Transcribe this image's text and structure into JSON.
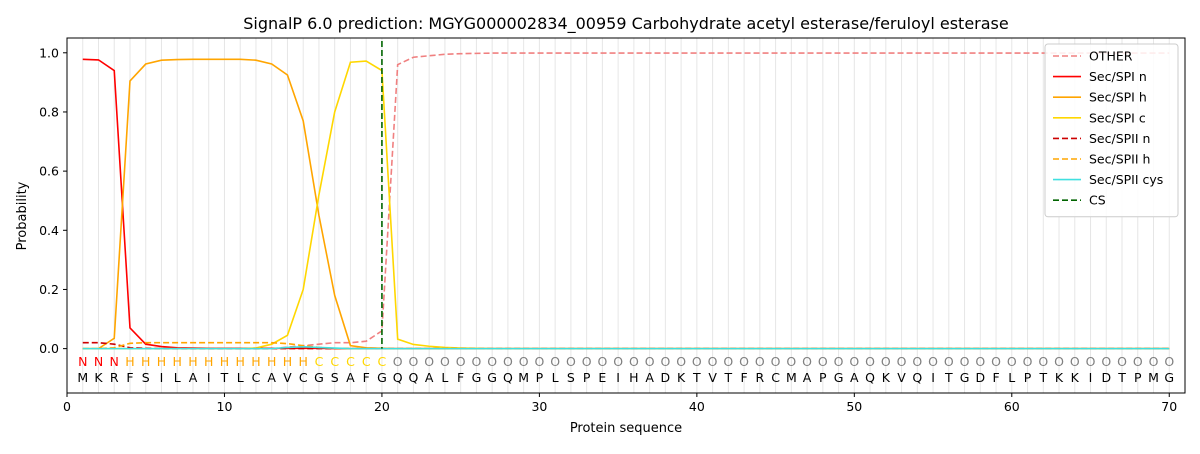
{
  "chart_data": {
    "type": "line",
    "title": "SignalP 6.0 prediction: MGYG000002834_00959 Carbohydrate acetyl esterase/feruloyl esterase",
    "xlabel": "Protein sequence",
    "ylabel": "Probability",
    "xlim": [
      0,
      71
    ],
    "ylim": [
      -0.15,
      1.05
    ],
    "x_ticks": [
      0,
      10,
      20,
      30,
      40,
      50,
      60,
      70
    ],
    "y_ticks": [
      0.0,
      0.2,
      0.4,
      0.6,
      0.8,
      1.0
    ],
    "x_tick_labels": [
      "0",
      "10",
      "20",
      "30",
      "40",
      "50",
      "60",
      "70"
    ],
    "y_tick_labels": [
      "0.0",
      "0.2",
      "0.4",
      "0.6",
      "0.8",
      "1.0"
    ],
    "grid": "vertical lines at each residue",
    "legend_position": "top-right",
    "sequence": [
      "M",
      "K",
      "R",
      "F",
      "S",
      "I",
      "L",
      "A",
      "I",
      "T",
      "L",
      "C",
      "A",
      "V",
      "C",
      "G",
      "S",
      "A",
      "F",
      "G",
      "Q",
      "Q",
      "A",
      "L",
      "F",
      "G",
      "G",
      "Q",
      "M",
      "P",
      "L",
      "S",
      "P",
      "E",
      "I",
      "H",
      "A",
      "D",
      "K",
      "T",
      "V",
      "T",
      "F",
      "R",
      "C",
      "M",
      "A",
      "P",
      "G",
      "A",
      "Q",
      "K",
      "V",
      "Q",
      "I",
      "T",
      "G",
      "D",
      "F",
      "L",
      "P",
      "T",
      "K",
      "K",
      "I",
      "D",
      "T",
      "P",
      "M",
      "G"
    ],
    "labels": [
      "N",
      "N",
      "N",
      "H",
      "H",
      "H",
      "H",
      "H",
      "H",
      "H",
      "H",
      "H",
      "H",
      "H",
      "H",
      "C",
      "C",
      "C",
      "C",
      "C",
      "O",
      "O",
      "O",
      "O",
      "O",
      "O",
      "O",
      "O",
      "O",
      "O",
      "O",
      "O",
      "O",
      "O",
      "O",
      "O",
      "O",
      "O",
      "O",
      "O",
      "O",
      "O",
      "O",
      "O",
      "O",
      "O",
      "O",
      "O",
      "O",
      "O",
      "O",
      "O",
      "O",
      "O",
      "O",
      "O",
      "O",
      "O",
      "O",
      "O",
      "O",
      "O",
      "O",
      "O",
      "O",
      "O",
      "O",
      "O",
      "O",
      "O"
    ],
    "label_colors": {
      "N": "#ff0000",
      "H": "#ffa500",
      "C": "#ffd700",
      "O": "#808080"
    },
    "series": [
      {
        "name": "OTHER",
        "color": "#f08080",
        "dash": "dashed",
        "values": [
          0.0,
          0.0,
          0.0,
          0.0,
          0.0,
          0.0,
          0.0,
          0.0,
          0.0,
          0.0,
          0.0,
          0.0,
          0.0,
          0.005,
          0.01,
          0.015,
          0.02,
          0.02,
          0.025,
          0.06,
          0.96,
          0.985,
          0.99,
          0.995,
          0.997,
          0.998,
          0.999,
          0.999,
          0.999,
          0.999,
          0.999,
          0.999,
          0.999,
          0.999,
          0.999,
          0.999,
          0.999,
          0.999,
          0.999,
          0.999,
          0.999,
          0.999,
          0.999,
          0.999,
          0.999,
          0.999,
          0.999,
          0.999,
          0.999,
          0.999,
          0.999,
          0.999,
          0.999,
          0.999,
          0.999,
          0.999,
          0.999,
          0.999,
          0.999,
          0.999,
          0.999,
          0.999,
          0.999,
          0.999,
          0.999,
          0.999,
          0.999,
          0.999,
          0.999,
          0.999
        ]
      },
      {
        "name": "Sec/SPI n",
        "color": "#ff0000",
        "dash": "solid",
        "values": [
          0.978,
          0.976,
          0.94,
          0.07,
          0.015,
          0.007,
          0.003,
          0.002,
          0.001,
          0.001,
          0.001,
          0.001,
          0.001,
          0.001,
          0.001,
          0.001,
          0.0,
          0.0,
          0.0,
          0.0,
          0.0,
          0.0,
          0.0,
          0.0,
          0.0,
          0.0,
          0.0,
          0.0,
          0.0,
          0.0,
          0.0,
          0.0,
          0.0,
          0.0,
          0.0,
          0.0,
          0.0,
          0.0,
          0.0,
          0.0,
          0.0,
          0.0,
          0.0,
          0.0,
          0.0,
          0.0,
          0.0,
          0.0,
          0.0,
          0.0,
          0.0,
          0.0,
          0.0,
          0.0,
          0.0,
          0.0,
          0.0,
          0.0,
          0.0,
          0.0,
          0.0,
          0.0,
          0.0,
          0.0,
          0.0,
          0.0,
          0.0,
          0.0,
          0.0,
          0.0
        ]
      },
      {
        "name": "Sec/SPI h",
        "color": "#ffa500",
        "dash": "solid",
        "values": [
          0.0,
          0.0,
          0.035,
          0.905,
          0.962,
          0.975,
          0.977,
          0.978,
          0.978,
          0.978,
          0.978,
          0.975,
          0.962,
          0.925,
          0.77,
          0.45,
          0.18,
          0.01,
          0.003,
          0.001,
          0.0,
          0.0,
          0.0,
          0.0,
          0.0,
          0.0,
          0.0,
          0.0,
          0.0,
          0.0,
          0.0,
          0.0,
          0.0,
          0.0,
          0.0,
          0.0,
          0.0,
          0.0,
          0.0,
          0.0,
          0.0,
          0.0,
          0.0,
          0.0,
          0.0,
          0.0,
          0.0,
          0.0,
          0.0,
          0.0,
          0.0,
          0.0,
          0.0,
          0.0,
          0.0,
          0.0,
          0.0,
          0.0,
          0.0,
          0.0,
          0.0,
          0.0,
          0.0,
          0.0,
          0.0,
          0.0,
          0.0,
          0.0,
          0.0,
          0.0
        ]
      },
      {
        "name": "Sec/SPI c",
        "color": "#ffd700",
        "dash": "solid",
        "values": [
          0.0,
          0.0,
          0.0,
          0.0,
          0.0,
          0.0,
          0.0,
          0.0,
          0.0,
          0.0,
          0.0,
          0.002,
          0.015,
          0.045,
          0.2,
          0.52,
          0.8,
          0.968,
          0.972,
          0.94,
          0.032,
          0.014,
          0.008,
          0.004,
          0.002,
          0.001,
          0.0,
          0.0,
          0.0,
          0.0,
          0.0,
          0.0,
          0.0,
          0.0,
          0.0,
          0.0,
          0.0,
          0.0,
          0.0,
          0.0,
          0.0,
          0.0,
          0.0,
          0.0,
          0.0,
          0.0,
          0.0,
          0.0,
          0.0,
          0.0,
          0.0,
          0.0,
          0.0,
          0.0,
          0.0,
          0.0,
          0.0,
          0.0,
          0.0,
          0.0,
          0.0,
          0.0,
          0.0,
          0.0,
          0.0,
          0.0,
          0.0,
          0.0,
          0.0,
          0.0
        ]
      },
      {
        "name": "Sec/SPII n",
        "color": "#cc0000",
        "dash": "dashed",
        "values": [
          0.02,
          0.02,
          0.015,
          0.003,
          0.001,
          0.0,
          0.0,
          0.0,
          0.0,
          0.0,
          0.0,
          0.0,
          0.0,
          0.0,
          0.0,
          0.0,
          0.0,
          0.0,
          0.0,
          0.0,
          0.0,
          0.0,
          0.0,
          0.0,
          0.0,
          0.0,
          0.0,
          0.0,
          0.0,
          0.0,
          0.0,
          0.0,
          0.0,
          0.0,
          0.0,
          0.0,
          0.0,
          0.0,
          0.0,
          0.0,
          0.0,
          0.0,
          0.0,
          0.0,
          0.0,
          0.0,
          0.0,
          0.0,
          0.0,
          0.0,
          0.0,
          0.0,
          0.0,
          0.0,
          0.0,
          0.0,
          0.0,
          0.0,
          0.0,
          0.0,
          0.0,
          0.0,
          0.0,
          0.0,
          0.0,
          0.0,
          0.0,
          0.0,
          0.0,
          0.0
        ]
      },
      {
        "name": "Sec/SPII h",
        "color": "#ffa500",
        "dash": "dashed",
        "values": [
          0.0,
          0.0,
          0.003,
          0.018,
          0.02,
          0.02,
          0.02,
          0.02,
          0.02,
          0.02,
          0.02,
          0.02,
          0.02,
          0.017,
          0.01,
          0.004,
          0.001,
          0.0,
          0.0,
          0.0,
          0.0,
          0.0,
          0.0,
          0.0,
          0.0,
          0.0,
          0.0,
          0.0,
          0.0,
          0.0,
          0.0,
          0.0,
          0.0,
          0.0,
          0.0,
          0.0,
          0.0,
          0.0,
          0.0,
          0.0,
          0.0,
          0.0,
          0.0,
          0.0,
          0.0,
          0.0,
          0.0,
          0.0,
          0.0,
          0.0,
          0.0,
          0.0,
          0.0,
          0.0,
          0.0,
          0.0,
          0.0,
          0.0,
          0.0,
          0.0,
          0.0,
          0.0,
          0.0,
          0.0,
          0.0,
          0.0,
          0.0,
          0.0,
          0.0,
          0.0
        ]
      },
      {
        "name": "Sec/SPII cys",
        "color": "#40e0e0",
        "dash": "solid",
        "values": [
          0.0,
          0.0,
          0.0,
          0.0,
          0.0,
          0.0,
          0.0,
          0.0,
          0.0,
          0.0,
          0.0,
          0.0,
          0.0,
          0.004,
          0.006,
          0.004,
          0.002,
          0.0,
          0.0,
          0.0,
          0.0,
          0.0,
          0.0,
          0.0,
          0.0,
          0.0,
          0.0,
          0.0,
          0.0,
          0.0,
          0.0,
          0.0,
          0.0,
          0.0,
          0.0,
          0.0,
          0.0,
          0.0,
          0.0,
          0.0,
          0.0,
          0.0,
          0.0,
          0.0,
          0.0,
          0.0,
          0.0,
          0.0,
          0.0,
          0.0,
          0.0,
          0.0,
          0.0,
          0.0,
          0.0,
          0.0,
          0.0,
          0.0,
          0.0,
          0.0,
          0.0,
          0.0,
          0.0,
          0.0,
          0.0,
          0.0,
          0.0,
          0.0,
          0.0,
          0.0
        ]
      }
    ],
    "cleavage_site": {
      "name": "CS",
      "x": 20,
      "color": "#006400",
      "dash": "dashed"
    }
  }
}
